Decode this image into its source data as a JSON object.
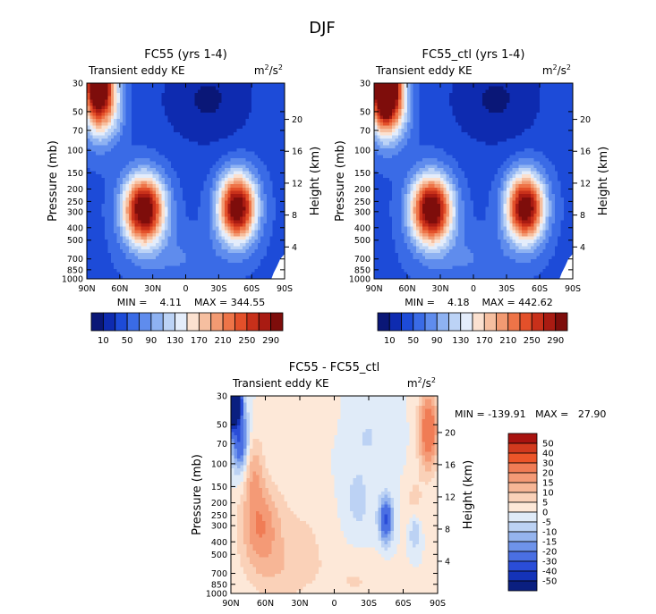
{
  "figure_title": "DJF",
  "chart_data": [
    {
      "type": "heatmap",
      "title": "FC55 (yrs 1-4)",
      "left_label": "Transient eddy KE",
      "units_base": "m",
      "units_exp1": "2",
      "units_mid": "/s",
      "units_exp2": "2",
      "xlabel": "",
      "ylabel": "Pressure (mb)",
      "ylabel_right": "Height (km)",
      "x_ticks": [
        "90N",
        "60N",
        "30N",
        "0",
        "30S",
        "60S",
        "90S"
      ],
      "x_tick_values": [
        90,
        60,
        30,
        0,
        -30,
        -60,
        -90
      ],
      "xlim": [
        90,
        -90
      ],
      "y_ticks": [
        "30",
        "50",
        "70",
        "100",
        "150",
        "200",
        "250",
        "300",
        "400",
        "500",
        "700",
        "850",
        "1000"
      ],
      "y_tick_values": [
        30,
        50,
        70,
        100,
        150,
        200,
        250,
        300,
        400,
        500,
        700,
        850,
        1000
      ],
      "ylim": [
        1000,
        30
      ],
      "height_ticks": [
        "4",
        "8",
        "12",
        "16",
        "20"
      ],
      "height_tick_values": [
        4,
        8,
        12,
        16,
        20
      ],
      "stats": "MIN =    4.11    MAX = 344.55",
      "min": 4.11,
      "max": 344.55,
      "features": [
        {
          "kind": "max",
          "lat": 37,
          "p": 300,
          "value": 330
        },
        {
          "kind": "max",
          "lat": -48,
          "p": 280,
          "value": 320
        },
        {
          "kind": "max",
          "lat": 78,
          "p": 30,
          "value": 344.55
        },
        {
          "kind": "min",
          "lat": -25,
          "p": 40,
          "value": 4.11
        }
      ]
    },
    {
      "type": "heatmap",
      "title": "FC55_ctl (yrs 1-4)",
      "left_label": "Transient eddy KE",
      "units_base": "m",
      "units_exp1": "2",
      "units_mid": "/s",
      "units_exp2": "2",
      "xlabel": "",
      "ylabel": "Pressure (mb)",
      "ylabel_right": "Height (km)",
      "x_ticks": [
        "90N",
        "60N",
        "30N",
        "0",
        "30S",
        "60S",
        "90S"
      ],
      "x_tick_values": [
        90,
        60,
        30,
        0,
        -30,
        -60,
        -90
      ],
      "xlim": [
        90,
        -90
      ],
      "y_ticks": [
        "30",
        "50",
        "70",
        "100",
        "150",
        "200",
        "250",
        "300",
        "400",
        "500",
        "700",
        "850",
        "1000"
      ],
      "y_tick_values": [
        30,
        50,
        70,
        100,
        150,
        200,
        250,
        300,
        400,
        500,
        700,
        850,
        1000
      ],
      "ylim": [
        1000,
        30
      ],
      "height_ticks": [
        "4",
        "8",
        "12",
        "16",
        "20"
      ],
      "height_tick_values": [
        4,
        8,
        12,
        16,
        20
      ],
      "stats": "MIN =    4.18    MAX = 442.62",
      "min": 4.18,
      "max": 442.62,
      "features": [
        {
          "kind": "max",
          "lat": 38,
          "p": 300,
          "value": 340
        },
        {
          "kind": "max",
          "lat": -47,
          "p": 270,
          "value": 330
        },
        {
          "kind": "max",
          "lat": 80,
          "p": 30,
          "value": 442.62
        },
        {
          "kind": "min",
          "lat": -10,
          "p": 50,
          "value": 4.18
        }
      ]
    },
    {
      "type": "heatmap",
      "title": "FC55 - FC55_ctl",
      "left_label": "Transient eddy KE",
      "units_base": "m",
      "units_exp1": "2",
      "units_mid": "/s",
      "units_exp2": "2",
      "xlabel": "",
      "ylabel": "Pressure (mb)",
      "ylabel_right": "Height (km)",
      "x_ticks": [
        "90N",
        "60N",
        "30N",
        "0",
        "30S",
        "60S",
        "90S"
      ],
      "x_tick_values": [
        90,
        60,
        30,
        0,
        -30,
        -60,
        -90
      ],
      "xlim": [
        90,
        -90
      ],
      "y_ticks": [
        "30",
        "50",
        "70",
        "100",
        "150",
        "200",
        "250",
        "300",
        "400",
        "500",
        "700",
        "850",
        "1000"
      ],
      "y_tick_values": [
        30,
        50,
        70,
        100,
        150,
        200,
        250,
        300,
        400,
        500,
        700,
        850,
        1000
      ],
      "ylim": [
        1000,
        30
      ],
      "height_ticks": [
        "4",
        "8",
        "12",
        "16",
        "20"
      ],
      "height_tick_values": [
        4,
        8,
        12,
        16,
        20
      ],
      "stats": "MIN = -139.91   MAX =   27.90",
      "min": -139.91,
      "max": 27.9,
      "features": [
        {
          "kind": "min",
          "lat": 86,
          "p": 35,
          "value": -139.91
        },
        {
          "kind": "max",
          "lat": -80,
          "p": 60,
          "value": 27.9
        },
        {
          "kind": "max",
          "lat": 67,
          "p": 300,
          "value": 20
        },
        {
          "kind": "min",
          "lat": -45,
          "p": 270,
          "value": -30
        }
      ]
    }
  ],
  "colorbar_abs": {
    "labels": [
      "10",
      "50",
      "90",
      "130",
      "170",
      "210",
      "250",
      "290"
    ],
    "colors": [
      "#0a1777",
      "#0e2bb0",
      "#1d4bd8",
      "#3a6be6",
      "#5f8ced",
      "#8eb2f2",
      "#bcd3f6",
      "#e4edfb",
      "#fbe1d0",
      "#f6bfa0",
      "#f29a72",
      "#ee7448",
      "#e3502a",
      "#c8301a",
      "#a91b12",
      "#7e0d0b"
    ]
  },
  "colorbar_diff": {
    "labels": [
      "50",
      "40",
      "30",
      "20",
      "15",
      "10",
      "5",
      "0",
      "-5",
      "-10",
      "-15",
      "-20",
      "-30",
      "-40",
      "-50"
    ],
    "colors": [
      "#a8130f",
      "#d23a1e",
      "#ec5529",
      "#f07c55",
      "#f49a76",
      "#f7b696",
      "#fad1b8",
      "#fde8d8",
      "#e0ebf8",
      "#bcd2f4",
      "#95b4ee",
      "#6e93ea",
      "#4a6fe3",
      "#2a4dd8",
      "#1433b8",
      "#0a1f80"
    ]
  }
}
